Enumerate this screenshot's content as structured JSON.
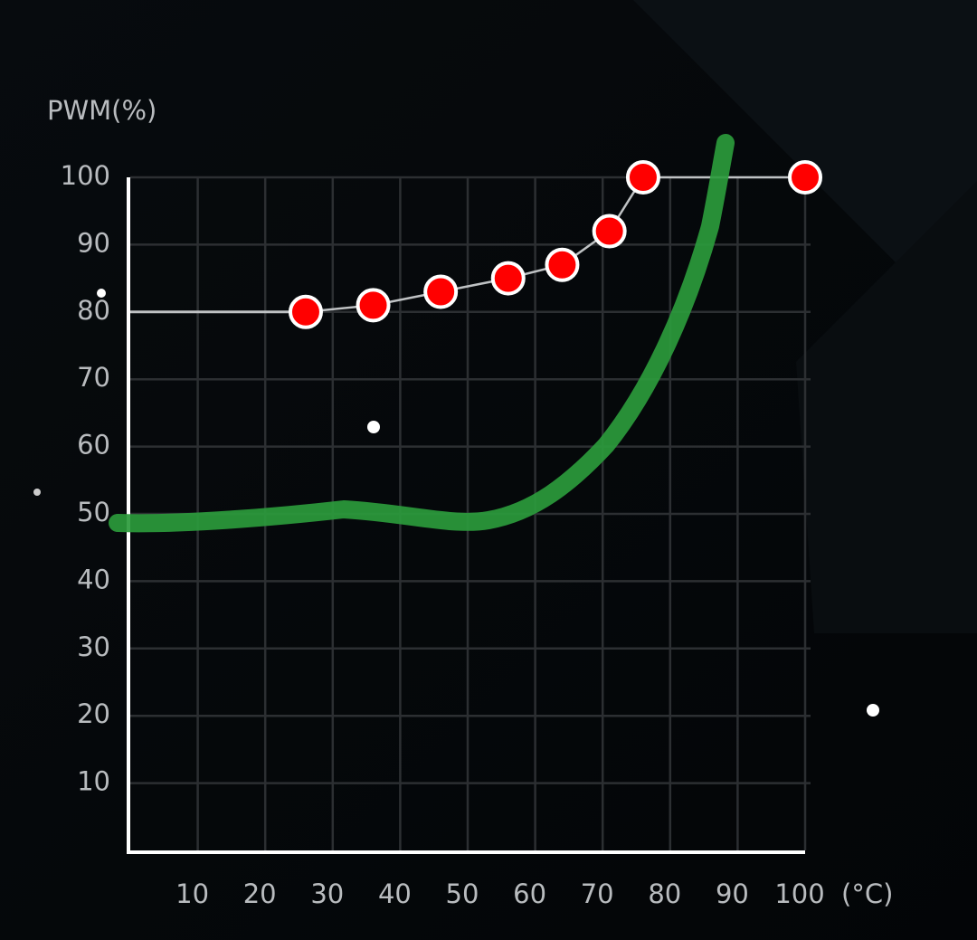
{
  "chart_data": {
    "type": "line",
    "y_label": "PWM(%)",
    "x_label": "(°C)",
    "x": [
      26,
      36,
      46,
      56,
      64,
      71,
      76,
      100
    ],
    "series": [
      {
        "color": "#ff0000",
        "values": [
          80,
          81,
          83,
          85,
          87,
          92,
          100,
          100
        ]
      }
    ],
    "xlim": [
      0,
      100
    ],
    "ylim": [
      0,
      100
    ],
    "xticks": [
      10,
      20,
      30,
      40,
      50,
      60,
      70,
      80,
      90,
      100
    ],
    "yticks": [
      10,
      20,
      30,
      40,
      50,
      60,
      70,
      80,
      90,
      100
    ],
    "grid": true
  }
}
